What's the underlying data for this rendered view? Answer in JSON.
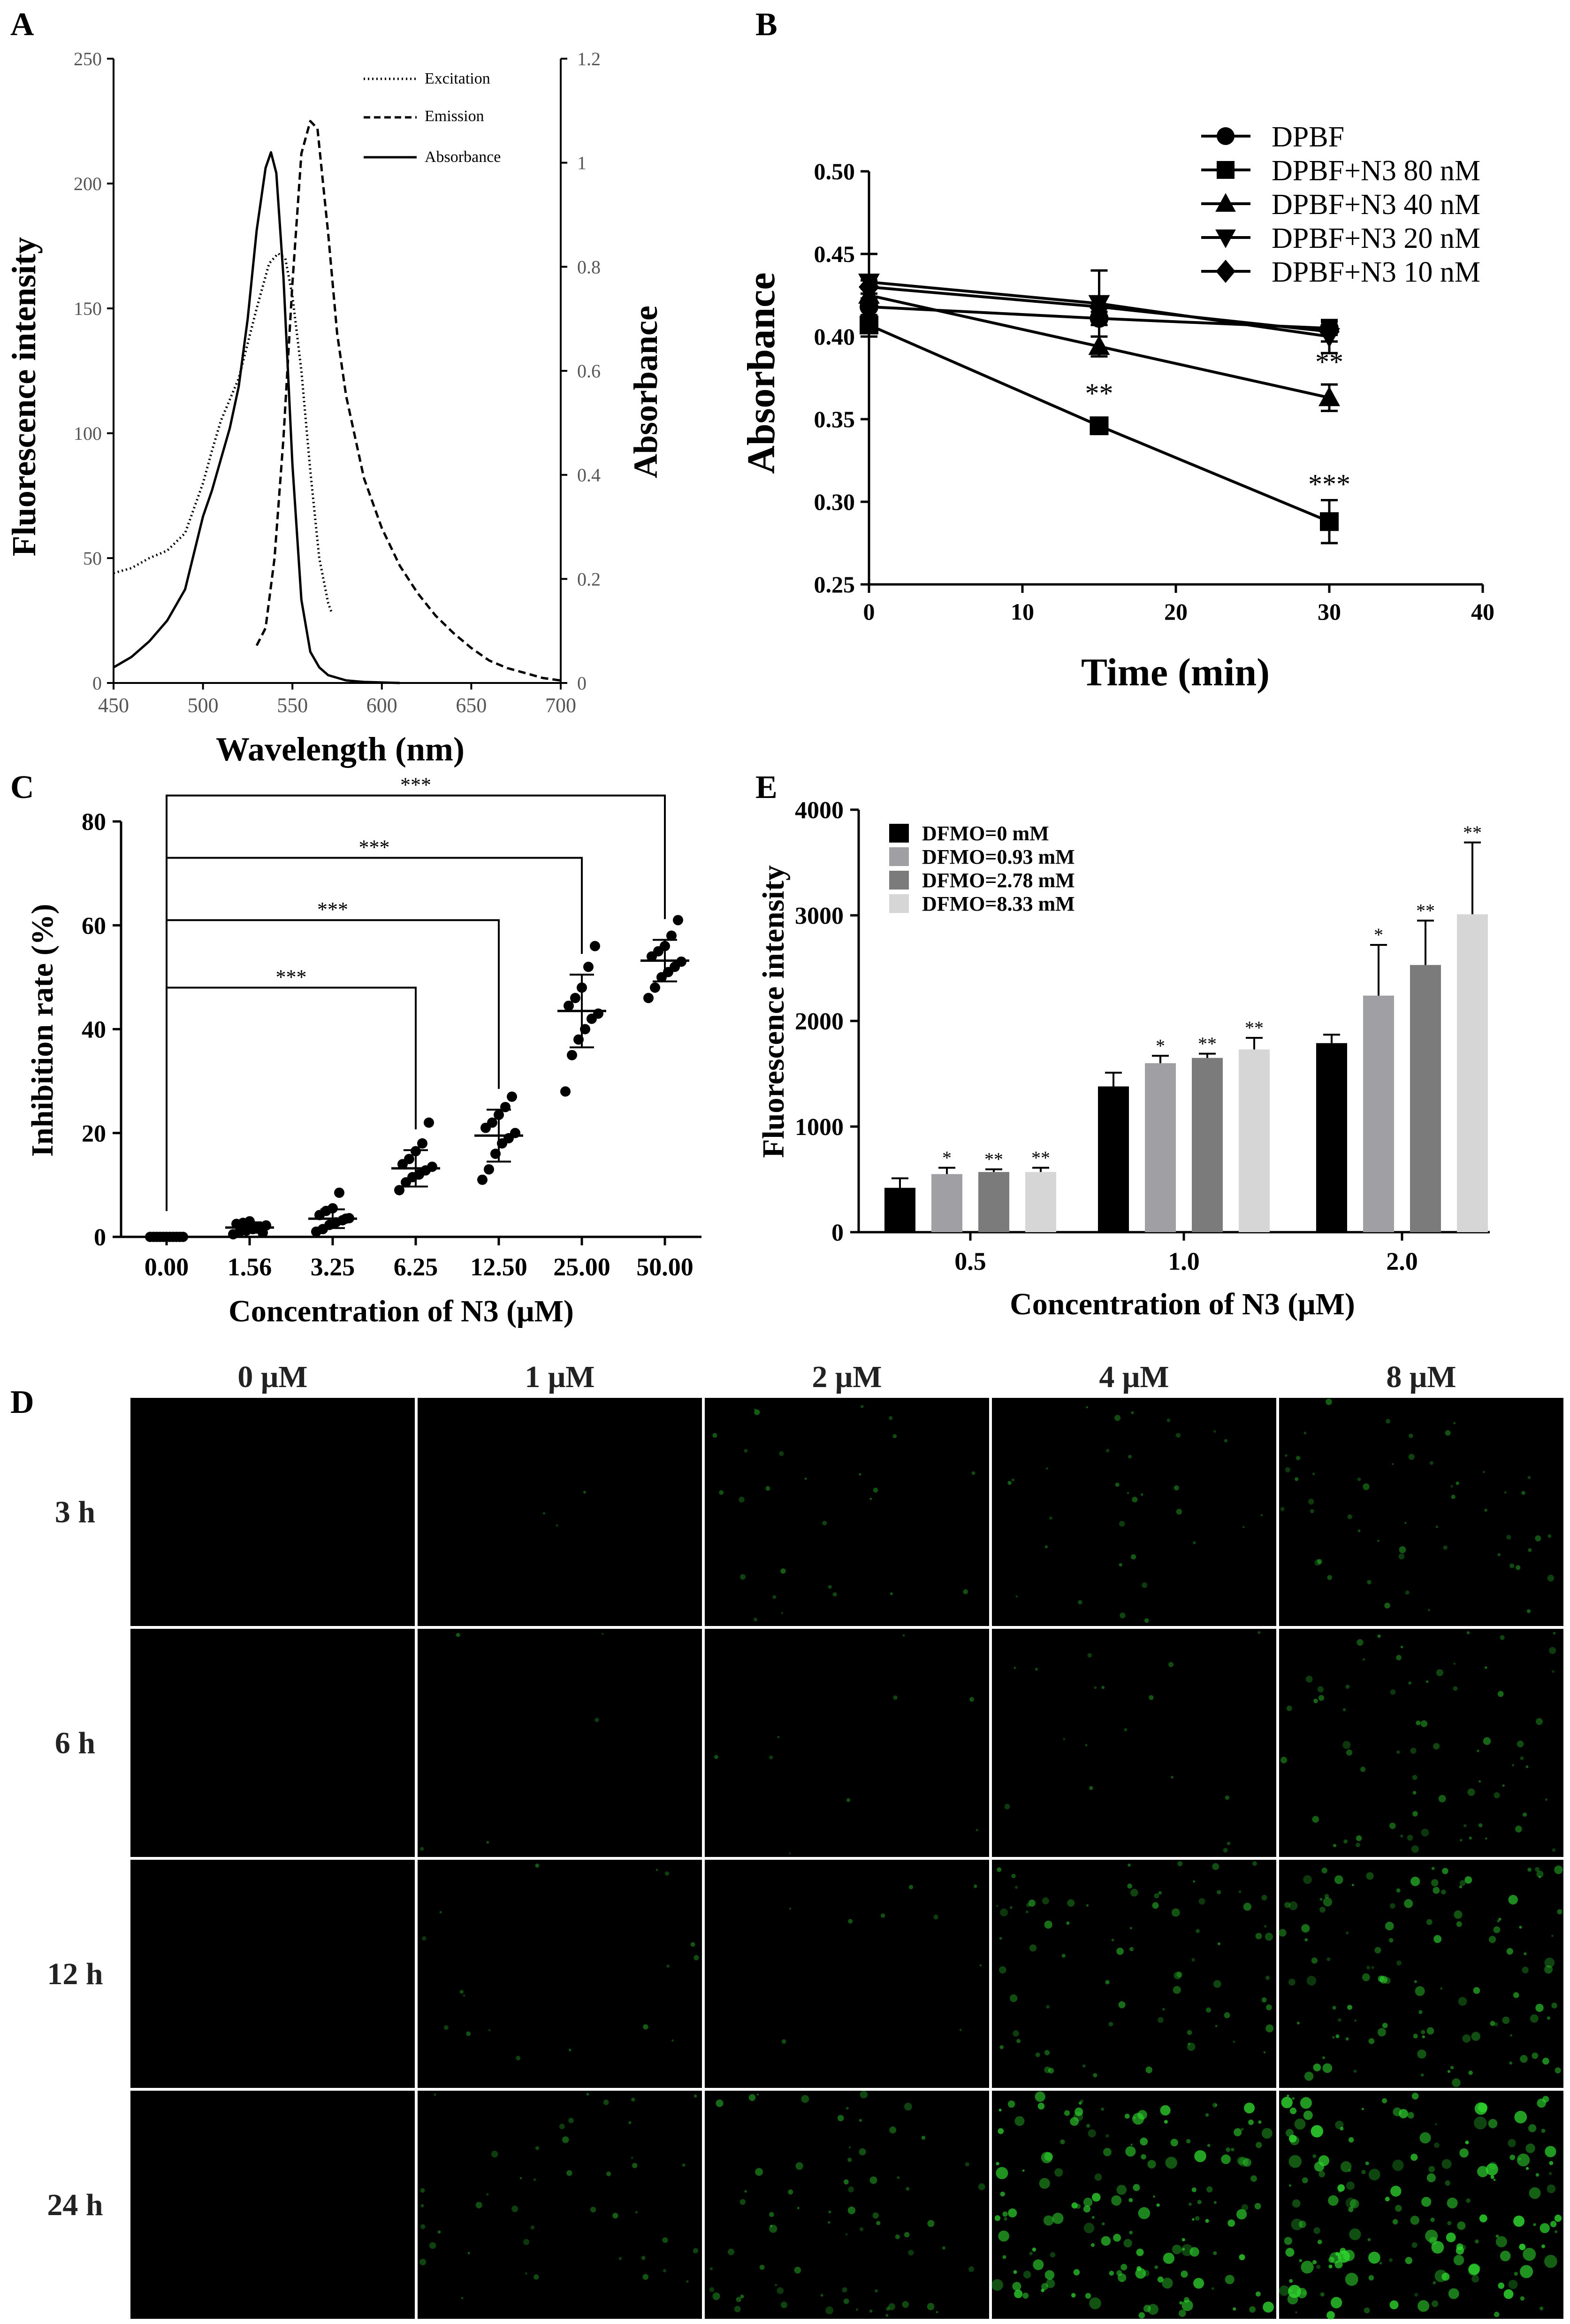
{
  "chart_data": [
    {
      "panel": "A",
      "type": "line",
      "xlabel": "Wavelength (nm)",
      "ylabel": "Fluorescence intensity",
      "y2label": "Absorbance",
      "xlim": [
        450,
        700
      ],
      "ylim": [
        0,
        250
      ],
      "y2lim": [
        0,
        1.2
      ],
      "xticks": [
        "450",
        "500",
        "550",
        "600",
        "650",
        "700"
      ],
      "yticks": [
        "0",
        "50",
        "100",
        "150",
        "200",
        "250"
      ],
      "y2ticks": [
        "0",
        "0.2",
        "0.4",
        "0.6",
        "0.8",
        "1",
        "1.2"
      ],
      "legend": [
        "Excitation",
        "Emission",
        "Absorbance"
      ],
      "series": [
        {
          "name": "Excitation",
          "axis": "left",
          "style": "dotted",
          "x": [
            450,
            460,
            470,
            480,
            490,
            500,
            505,
            510,
            520,
            530,
            537,
            542,
            546,
            550,
            555,
            560,
            565,
            570,
            572
          ],
          "y": [
            44,
            46,
            50,
            53,
            60,
            80,
            93,
            105,
            122,
            150,
            168,
            172,
            170,
            155,
            125,
            85,
            50,
            32,
            28
          ]
        },
        {
          "name": "Emission",
          "axis": "left",
          "style": "dashed",
          "x": [
            530,
            535,
            540,
            545,
            550,
            555,
            560,
            564,
            570,
            575,
            580,
            590,
            600,
            610,
            620,
            630,
            640,
            650,
            660,
            670,
            680,
            690,
            700
          ],
          "y": [
            15,
            22,
            50,
            98,
            160,
            212,
            225,
            222,
            180,
            140,
            115,
            82,
            62,
            47,
            36,
            27,
            20,
            14,
            9,
            6,
            4,
            2,
            1
          ]
        },
        {
          "name": "Absorbance",
          "axis": "right",
          "style": "solid",
          "x": [
            450,
            460,
            470,
            480,
            490,
            500,
            505,
            510,
            515,
            520,
            525,
            530,
            535,
            538,
            541,
            545,
            550,
            555,
            560,
            565,
            570,
            580,
            590,
            600,
            610
          ],
          "y": [
            0.03,
            0.05,
            0.08,
            0.12,
            0.18,
            0.32,
            0.37,
            0.43,
            0.49,
            0.57,
            0.7,
            0.87,
            0.99,
            1.02,
            0.98,
            0.78,
            0.42,
            0.16,
            0.06,
            0.03,
            0.015,
            0.005,
            0.002,
            0.001,
            0
          ]
        }
      ]
    },
    {
      "panel": "B",
      "type": "line",
      "xlabel": "Time (min)",
      "ylabel": "Absorbance",
      "xlim": [
        0,
        40
      ],
      "ylim": [
        0.25,
        0.5
      ],
      "xticks": [
        "0",
        "10",
        "20",
        "30",
        "40"
      ],
      "yticks": [
        "0.25",
        "0.30",
        "0.35",
        "0.40",
        "0.45",
        "0.50"
      ],
      "x": [
        0,
        15,
        30
      ],
      "series": [
        {
          "name": "DPBF",
          "marker": "circle",
          "values": [
            0.418,
            0.411,
            0.405
          ],
          "err": [
            0.005,
            0.004,
            0.004
          ]
        },
        {
          "name": "DPBF+N3 80 nM",
          "marker": "square",
          "values": [
            0.407,
            0.346,
            0.288
          ],
          "err": [
            0.004,
            0.004,
            0.013
          ]
        },
        {
          "name": "DPBF+N3 40 nM",
          "marker": "triangle",
          "values": [
            0.425,
            0.394,
            0.363
          ],
          "err": [
            0.025,
            0.006,
            0.008
          ]
        },
        {
          "name": "DPBF+N3 20 nM",
          "marker": "triangle-down",
          "values": [
            0.433,
            0.42,
            0.4
          ],
          "err": [
            0.004,
            0.02,
            0.01
          ]
        },
        {
          "name": "DPBF+N3 10 nM",
          "marker": "diamond",
          "values": [
            0.43,
            0.418,
            0.403
          ],
          "err": [
            0.004,
            0.005,
            0.006
          ]
        }
      ],
      "annotations": [
        {
          "x": 15,
          "y": 0.36,
          "text": "**"
        },
        {
          "x": 30,
          "y": 0.379,
          "text": "**"
        },
        {
          "x": 30,
          "y": 0.305,
          "text": "***"
        }
      ]
    },
    {
      "panel": "C",
      "type": "scatter",
      "xlabel": "Concentration of N3 (μM)",
      "ylabel": "Inhibition rate (%)",
      "ylim": [
        0,
        80
      ],
      "yticks": [
        "0",
        "20",
        "40",
        "60",
        "80"
      ],
      "categories": [
        "0.00",
        "1.56",
        "3.25",
        "6.25",
        "12.50",
        "25.00",
        "50.00"
      ],
      "means": [
        0,
        1.8,
        3.5,
        13.2,
        19.5,
        43.5,
        53.2
      ],
      "sd": [
        0.1,
        1.0,
        1.8,
        3.5,
        5.0,
        7.0,
        4.0
      ],
      "points": [
        [
          0,
          0,
          0,
          0,
          0,
          0,
          0,
          0,
          0,
          0,
          0
        ],
        [
          0.5,
          1,
          1.2,
          1.5,
          2,
          2.2,
          2.5,
          2.7,
          3,
          1.8,
          0.8
        ],
        [
          1,
          1.5,
          2.3,
          2.8,
          3.2,
          3.6,
          4.2,
          5,
          5.5,
          8.5,
          3.5
        ],
        [
          9,
          10.5,
          11.5,
          12,
          12.8,
          13.5,
          14,
          15,
          16.5,
          18,
          22
        ],
        [
          11,
          13,
          16,
          18,
          19,
          20,
          21,
          22,
          23.5,
          25,
          27
        ],
        [
          28,
          35,
          38,
          40,
          42,
          43,
          44.5,
          46,
          48,
          52,
          56
        ],
        [
          46,
          48,
          50,
          51,
          52,
          53,
          54,
          55,
          56,
          58,
          61
        ]
      ],
      "brackets": [
        {
          "from": 0,
          "to": 3,
          "y": 48,
          "text": "***"
        },
        {
          "from": 0,
          "to": 4,
          "y": 61,
          "text": "***"
        },
        {
          "from": 0,
          "to": 5,
          "y": 73,
          "text": "***"
        },
        {
          "from": 0,
          "to": 6,
          "y": 85,
          "text": "***"
        }
      ]
    },
    {
      "panel": "E",
      "type": "bar",
      "xlabel": "Concentration of N3 (μM)",
      "ylabel": "Fluorescence intensity",
      "ylim": [
        0,
        4000
      ],
      "yticks": [
        "0",
        "1000",
        "2000",
        "3000",
        "4000"
      ],
      "categories": [
        "0.5",
        "1.0",
        "2.0"
      ],
      "series": [
        {
          "name": "DFMO=0 mM",
          "color": "#000000",
          "values": [
            420,
            1380,
            1790
          ],
          "err": [
            90,
            130,
            80
          ],
          "sig": [
            "",
            "",
            ""
          ]
        },
        {
          "name": "DFMO=0.93 mM",
          "color": "#a0a0a4",
          "values": [
            550,
            1600,
            2240
          ],
          "err": [
            60,
            70,
            480
          ],
          "sig": [
            "*",
            "*",
            "*"
          ]
        },
        {
          "name": "DFMO=2.78 mM",
          "color": "#7b7b7b",
          "values": [
            570,
            1650,
            2530
          ],
          "err": [
            25,
            40,
            420
          ],
          "sig": [
            "**",
            "**",
            "**"
          ]
        },
        {
          "name": "DFMO=8.33 mM",
          "color": "#d6d6d6",
          "values": [
            570,
            1730,
            3010
          ],
          "err": [
            40,
            110,
            680
          ],
          "sig": [
            "**",
            "**",
            "**"
          ]
        }
      ]
    }
  ],
  "panel_labels": {
    "A": "A",
    "B": "B",
    "C": "C",
    "D": "D",
    "E": "E"
  },
  "panel_d": {
    "columns": [
      "0 μM",
      "1 μM",
      "2 μM",
      "4 μM",
      "8 μM"
    ],
    "rows": [
      "3 h",
      "6 h",
      "12 h",
      "24 h"
    ],
    "intensity": [
      [
        0,
        0.02,
        0.15,
        0.18,
        0.3
      ],
      [
        0,
        0.03,
        0.05,
        0.1,
        0.4
      ],
      [
        0,
        0.1,
        0.05,
        0.45,
        0.65
      ],
      [
        0,
        0.25,
        0.4,
        0.9,
        1.0
      ]
    ],
    "dot_color": "#2fd92f"
  }
}
